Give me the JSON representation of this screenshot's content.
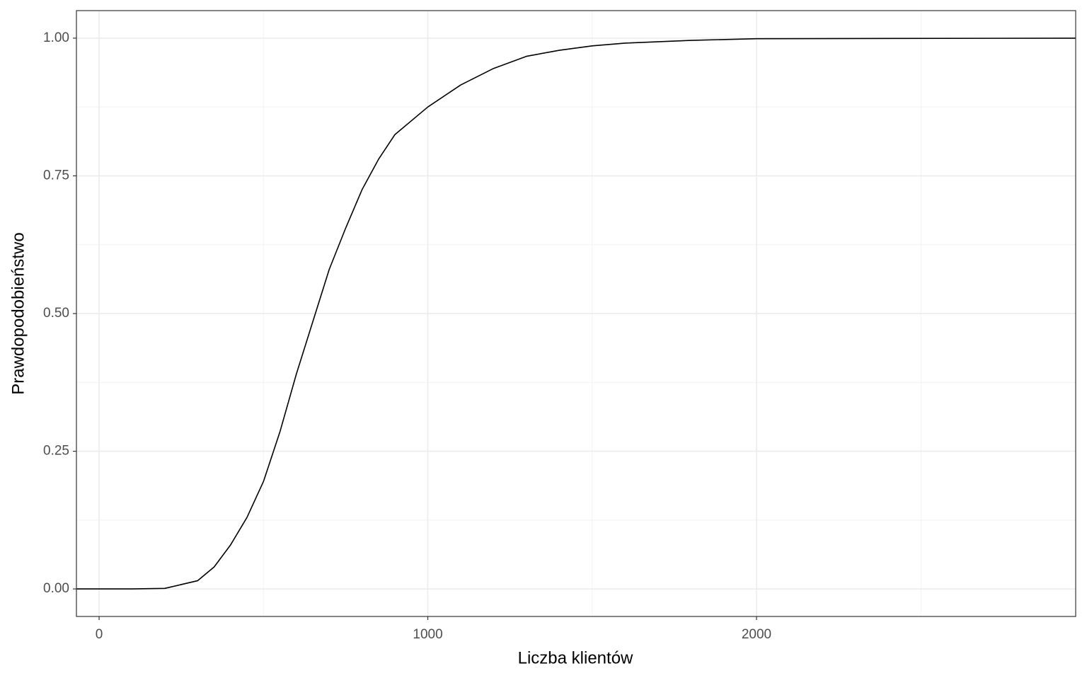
{
  "chart_data": {
    "type": "line",
    "x_label": "Liczba klientów",
    "y_label": "Prawdopodobieństwo",
    "series": [
      {
        "color": "#000000",
        "x": [
          -69,
          0,
          100,
          200,
          300,
          350,
          400,
          450,
          500,
          550,
          600,
          650,
          700,
          750,
          800,
          850,
          900,
          1000,
          1100,
          1200,
          1300,
          1400,
          1500,
          1600,
          1800,
          2000,
          2971
        ],
        "values": [
          0,
          0,
          0,
          0.001,
          0.015,
          0.04,
          0.08,
          0.13,
          0.195,
          0.285,
          0.39,
          0.485,
          0.58,
          0.655,
          0.725,
          0.78,
          0.825,
          0.875,
          0.915,
          0.945,
          0.967,
          0.978,
          0.986,
          0.991,
          0.996,
          0.999,
          1
        ]
      }
    ],
    "xlim": [
      -69,
      2971
    ],
    "ylim": [
      -0.05,
      1.05
    ],
    "xticks": [
      0,
      1000,
      2000
    ],
    "yticks": [
      {
        "value": 0,
        "label": "0.00"
      },
      {
        "value": 0.25,
        "label": "0.25"
      },
      {
        "value": 0.5,
        "label": "0.50"
      },
      {
        "value": 0.75,
        "label": "0.75"
      },
      {
        "value": 1,
        "label": "1.00"
      }
    ],
    "x_minor_breaks": [
      500,
      1500,
      2500
    ],
    "y_minor_breaks": [
      0.125,
      0.375,
      0.625,
      0.875
    ],
    "grid": true
  }
}
